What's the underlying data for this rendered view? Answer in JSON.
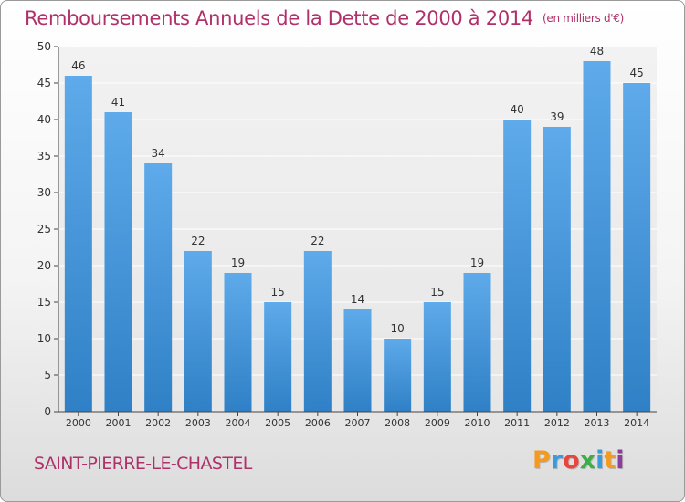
{
  "chart_data": {
    "type": "bar",
    "title": "Remboursements Annuels de la Dette de 2000 à 2014",
    "subtitle": "(en milliers d'€)",
    "categories": [
      "2000",
      "2001",
      "2002",
      "2003",
      "2004",
      "2005",
      "2006",
      "2007",
      "2008",
      "2009",
      "2010",
      "2011",
      "2012",
      "2013",
      "2014"
    ],
    "values": [
      46,
      41,
      34,
      22,
      19,
      15,
      22,
      14,
      10,
      15,
      19,
      40,
      39,
      48,
      45
    ],
    "ylim": [
      0,
      50
    ],
    "yticks": [
      0,
      5,
      10,
      15,
      20,
      25,
      30,
      35,
      40,
      45,
      50
    ],
    "grid": true,
    "bar_color": "#3a8fd6"
  },
  "footer": {
    "commune": "SAINT-PIERRE-LE-CHASTEL",
    "logo": "Proxiti",
    "logo_colors": [
      "#f39a1f",
      "#3b9ad9",
      "#e9453c",
      "#3fae49",
      "#3b9ad9",
      "#f39a1f",
      "#8b3d97"
    ]
  },
  "colors": {
    "title": "#b0306a",
    "axis": "#333333"
  }
}
